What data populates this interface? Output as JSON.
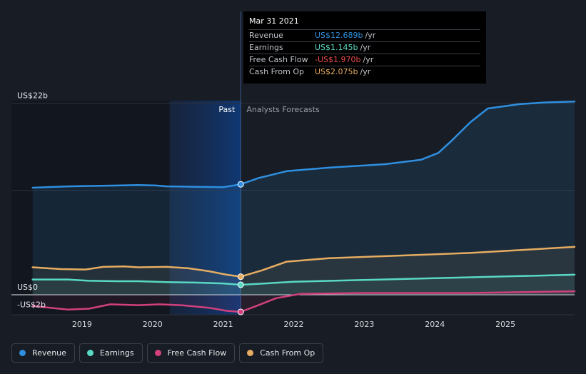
{
  "chart_data": {
    "type": "area",
    "title": "",
    "ylabel": "",
    "xlabel": "",
    "ylim": [
      -2.3,
      22.3
    ],
    "y_labels": [
      {
        "value": 22,
        "text": "US$22b"
      },
      {
        "value": 0,
        "text": "US$0"
      },
      {
        "value": -2,
        "text": "-US$2b"
      }
    ],
    "x_ticks": [
      {
        "value": 2019,
        "label": "2019"
      },
      {
        "value": 2020,
        "label": "2020"
      },
      {
        "value": 2021,
        "label": "2021"
      },
      {
        "value": 2022,
        "label": "2022"
      },
      {
        "value": 2023,
        "label": "2023"
      },
      {
        "value": 2024,
        "label": "2024"
      },
      {
        "value": 2025,
        "label": "2025"
      }
    ],
    "xlim": [
      2018.0,
      2025.98
    ],
    "past_start": 2020.24,
    "divider": 2021.25,
    "past_label": "Past",
    "forecast_label": "Analysts Forecasts",
    "series": [
      {
        "name": "Revenue",
        "color": "#2f8fe0",
        "points": [
          [
            2018.3,
            12.3
          ],
          [
            2018.8,
            12.45
          ],
          [
            2019.1,
            12.5
          ],
          [
            2019.5,
            12.55
          ],
          [
            2019.8,
            12.6
          ],
          [
            2020.05,
            12.55
          ],
          [
            2020.2,
            12.45
          ],
          [
            2020.6,
            12.4
          ],
          [
            2021.0,
            12.35
          ],
          [
            2021.25,
            12.689
          ],
          [
            2021.5,
            13.4
          ],
          [
            2021.9,
            14.2
          ],
          [
            2022.5,
            14.6
          ],
          [
            2023.3,
            15.0
          ],
          [
            2023.8,
            15.5
          ],
          [
            2024.05,
            16.3
          ],
          [
            2024.25,
            17.8
          ],
          [
            2024.5,
            19.8
          ],
          [
            2024.75,
            21.4
          ],
          [
            2025.2,
            21.9
          ],
          [
            2025.6,
            22.1
          ],
          [
            2025.98,
            22.2
          ]
        ]
      },
      {
        "name": "Earnings",
        "color": "#59d9c4",
        "points": [
          [
            2018.3,
            1.75
          ],
          [
            2018.8,
            1.75
          ],
          [
            2019.1,
            1.6
          ],
          [
            2019.5,
            1.55
          ],
          [
            2019.8,
            1.55
          ],
          [
            2020.2,
            1.45
          ],
          [
            2020.6,
            1.4
          ],
          [
            2021.0,
            1.3
          ],
          [
            2021.25,
            1.145
          ],
          [
            2021.6,
            1.3
          ],
          [
            2022.0,
            1.5
          ],
          [
            2023.0,
            1.7
          ],
          [
            2024.0,
            1.9
          ],
          [
            2025.0,
            2.1
          ],
          [
            2025.98,
            2.3
          ]
        ]
      },
      {
        "name": "Free Cash Flow",
        "color": "#d2407e",
        "points": [
          [
            2018.3,
            -1.3
          ],
          [
            2018.8,
            -1.7
          ],
          [
            2019.1,
            -1.6
          ],
          [
            2019.4,
            -1.1
          ],
          [
            2019.8,
            -1.2
          ],
          [
            2020.1,
            -1.1
          ],
          [
            2020.4,
            -1.2
          ],
          [
            2020.8,
            -1.5
          ],
          [
            2021.05,
            -1.85
          ],
          [
            2021.25,
            -1.97
          ],
          [
            2021.5,
            -1.2
          ],
          [
            2021.75,
            -0.4
          ],
          [
            2022.1,
            0.1
          ],
          [
            2023.0,
            0.2
          ],
          [
            2024.5,
            0.2
          ],
          [
            2025.98,
            0.4
          ]
        ]
      },
      {
        "name": "Cash From Op",
        "color": "#e6ad62",
        "points": [
          [
            2018.3,
            3.15
          ],
          [
            2018.7,
            2.95
          ],
          [
            2019.05,
            2.9
          ],
          [
            2019.3,
            3.2
          ],
          [
            2019.6,
            3.25
          ],
          [
            2019.8,
            3.15
          ],
          [
            2020.2,
            3.2
          ],
          [
            2020.5,
            3.05
          ],
          [
            2020.8,
            2.7
          ],
          [
            2021.05,
            2.3
          ],
          [
            2021.25,
            2.075
          ],
          [
            2021.55,
            2.8
          ],
          [
            2021.9,
            3.8
          ],
          [
            2022.5,
            4.2
          ],
          [
            2023.5,
            4.5
          ],
          [
            2024.5,
            4.8
          ],
          [
            2025.98,
            5.5
          ]
        ]
      }
    ],
    "highlight": {
      "x": 2021.25,
      "date": "Mar 31 2021",
      "rows": [
        {
          "name": "Revenue",
          "value": "US$12.689b",
          "unit": "/yr",
          "color": "#2f8fe0"
        },
        {
          "name": "Earnings",
          "value": "US$1.145b",
          "unit": "/yr",
          "color": "#59d9c4"
        },
        {
          "name": "Free Cash Flow",
          "value": "-US$1.970b",
          "unit": "/yr",
          "color": "#e84b4b"
        },
        {
          "name": "Cash From Op",
          "value": "US$2.075b",
          "unit": "/yr",
          "color": "#e6ad62"
        }
      ]
    }
  },
  "legend": [
    {
      "label": "Revenue",
      "color": "#2f8fe0"
    },
    {
      "label": "Earnings",
      "color": "#59d9c4"
    },
    {
      "label": "Free Cash Flow",
      "color": "#d2407e"
    },
    {
      "label": "Cash From Op",
      "color": "#e6ad62"
    }
  ]
}
